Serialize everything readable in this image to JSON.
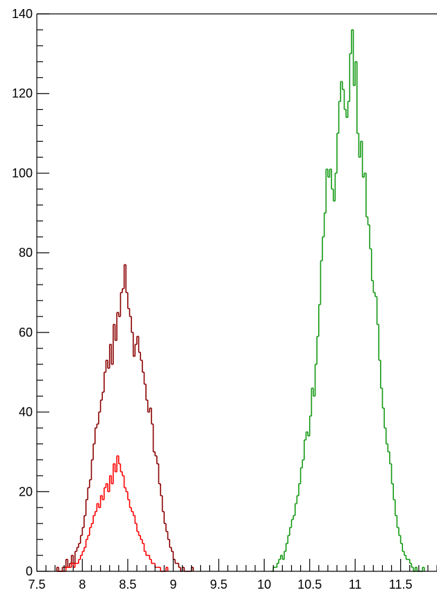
{
  "chart_data": {
    "type": "histogram",
    "xlim": [
      7.5,
      11.9
    ],
    "ylim": [
      0,
      140
    ],
    "x_ticks": [
      "7.5",
      "8",
      "8.5",
      "9",
      "9.5",
      "10",
      "10.5",
      "11",
      "11.5"
    ],
    "y_ticks": [
      "0",
      "20",
      "40",
      "60",
      "80",
      "100",
      "120",
      "140"
    ],
    "bin_width": 0.02,
    "grid": false,
    "series": [
      {
        "color": "#8b0000",
        "x_start": 7.72,
        "values": [
          1,
          0,
          0,
          1,
          1,
          3,
          1,
          2,
          4,
          2,
          5,
          6,
          7,
          9,
          11,
          14,
          18,
          21,
          23,
          28,
          32,
          36,
          37,
          40,
          43,
          45,
          50,
          53,
          51,
          57,
          52,
          62,
          58,
          65,
          64,
          70,
          71,
          77,
          70,
          66,
          64,
          60,
          54,
          57,
          59,
          55,
          53,
          50,
          47,
          43,
          40,
          41,
          37,
          30,
          29,
          27,
          22,
          19,
          15,
          12,
          10,
          8,
          6,
          5,
          3,
          2,
          2,
          1,
          0,
          1,
          0,
          0,
          0,
          0,
          1
        ]
      },
      {
        "color": "#ff0000",
        "x_start": 7.72,
        "values": [
          0,
          0,
          0,
          0,
          0,
          1,
          1,
          1,
          2,
          1,
          2,
          2,
          3,
          4,
          5,
          6,
          8,
          9,
          11,
          12,
          14,
          15,
          17,
          16,
          19,
          18,
          21,
          22,
          20,
          24,
          22,
          27,
          25,
          29,
          27,
          25,
          24,
          21,
          20,
          18,
          16,
          15,
          14,
          12,
          10,
          9,
          8,
          7,
          5,
          4,
          4,
          3,
          2,
          2,
          1,
          1,
          1,
          0,
          0,
          0,
          1
        ]
      },
      {
        "color": "#129912",
        "x_start": 10.08,
        "values": [
          0,
          1,
          1,
          2,
          3,
          4,
          3,
          5,
          7,
          9,
          11,
          13,
          14,
          17,
          19,
          22,
          26,
          28,
          33,
          35,
          34,
          39,
          46,
          44,
          52,
          59,
          67,
          78,
          84,
          90,
          101,
          99,
          101,
          96,
          93,
          100,
          110,
          118,
          123,
          121,
          116,
          114,
          118,
          130,
          136,
          122,
          128,
          110,
          104,
          108,
          99,
          100,
          89,
          87,
          81,
          73,
          70,
          69,
          62,
          53,
          46,
          41,
          36,
          32,
          30,
          27,
          22,
          18,
          14,
          11,
          9,
          7,
          5,
          4,
          3,
          3,
          2,
          1,
          0,
          1,
          0,
          0,
          0,
          1
        ]
      }
    ]
  }
}
